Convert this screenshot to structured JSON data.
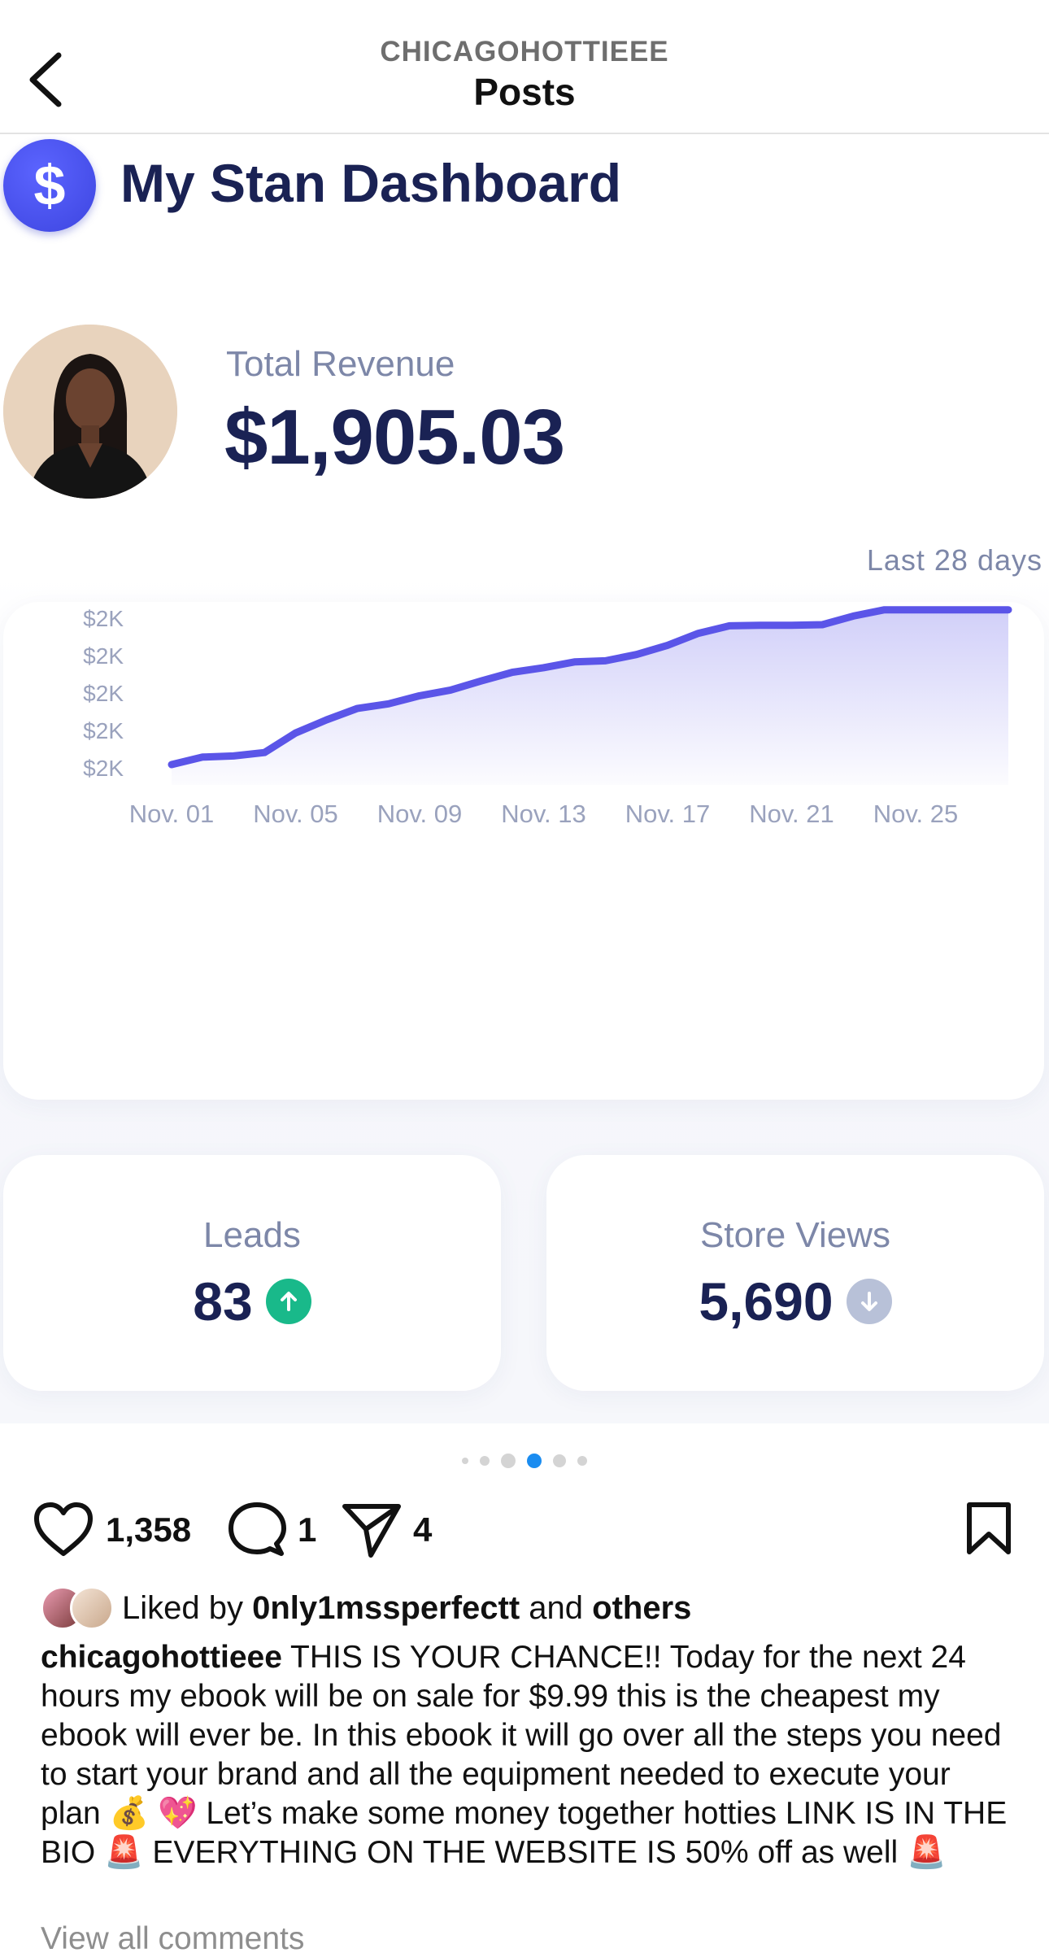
{
  "header": {
    "username": "CHICAGOHOTTIEEE",
    "title": "Posts"
  },
  "dashboard": {
    "title": "My Stan Dashboard",
    "logo_glyph": "$",
    "revenue_label": "Total Revenue",
    "revenue_value": "$1,905.03",
    "period": "Last 28 days",
    "accent_color": "#5b55e8",
    "stats": {
      "leads": {
        "label": "Leads",
        "value": "83",
        "trend": "up"
      },
      "store_views": {
        "label": "Store Views",
        "value": "5,690",
        "trend": "down"
      }
    }
  },
  "chart_data": {
    "type": "area",
    "title": "",
    "xlabel": "",
    "ylabel": "",
    "x_tick_labels": [
      "Nov. 01",
      "Nov. 05",
      "Nov. 09",
      "Nov. 13",
      "Nov. 17",
      "Nov. 21",
      "Nov. 25"
    ],
    "y_tick_labels": [
      "$2K",
      "$2K",
      "$2K",
      "$2K",
      "$2K",
      "$2K"
    ],
    "x": [
      1,
      2,
      3,
      4,
      5,
      6,
      7,
      8,
      9,
      10,
      11,
      12,
      13,
      14,
      15,
      16,
      17,
      18,
      19,
      20,
      21,
      22,
      23,
      24,
      25,
      26,
      27,
      28
    ],
    "values": [
      1570,
      1583,
      1585,
      1591,
      1625,
      1648,
      1668,
      1676,
      1690,
      1700,
      1716,
      1731,
      1739,
      1749,
      1751,
      1762,
      1778,
      1799,
      1812,
      1813,
      1813,
      1814,
      1829,
      1840,
      1840,
      1840,
      1840,
      1840
    ],
    "y_axis_range": [
      1570,
      1875
    ],
    "grid": false,
    "series_color": "#5b55e8"
  },
  "carousel": {
    "count": 6,
    "active_index": 3
  },
  "actions": {
    "likes": "1,358",
    "comments": "1",
    "shares": "4"
  },
  "liked_by": {
    "prefix": "Liked by",
    "user": "0nly1mssperfectt",
    "joiner": "and",
    "others": "others"
  },
  "caption": {
    "username": "chicagohottieee",
    "text": "THIS IS YOUR CHANCE!! Today for the next 24 hours my ebook will be on sale for $9.99 this is the cheapest my ebook will ever be. In this ebook it will go over all the steps you need to start your brand and all the equipment needed to execute your plan 💰 💖 Let’s make some money together hotties LINK IS IN THE BIO 🚨 EVERYTHING ON THE WEBSITE IS 50% off as well 🚨"
  },
  "view_all": "View all comments"
}
